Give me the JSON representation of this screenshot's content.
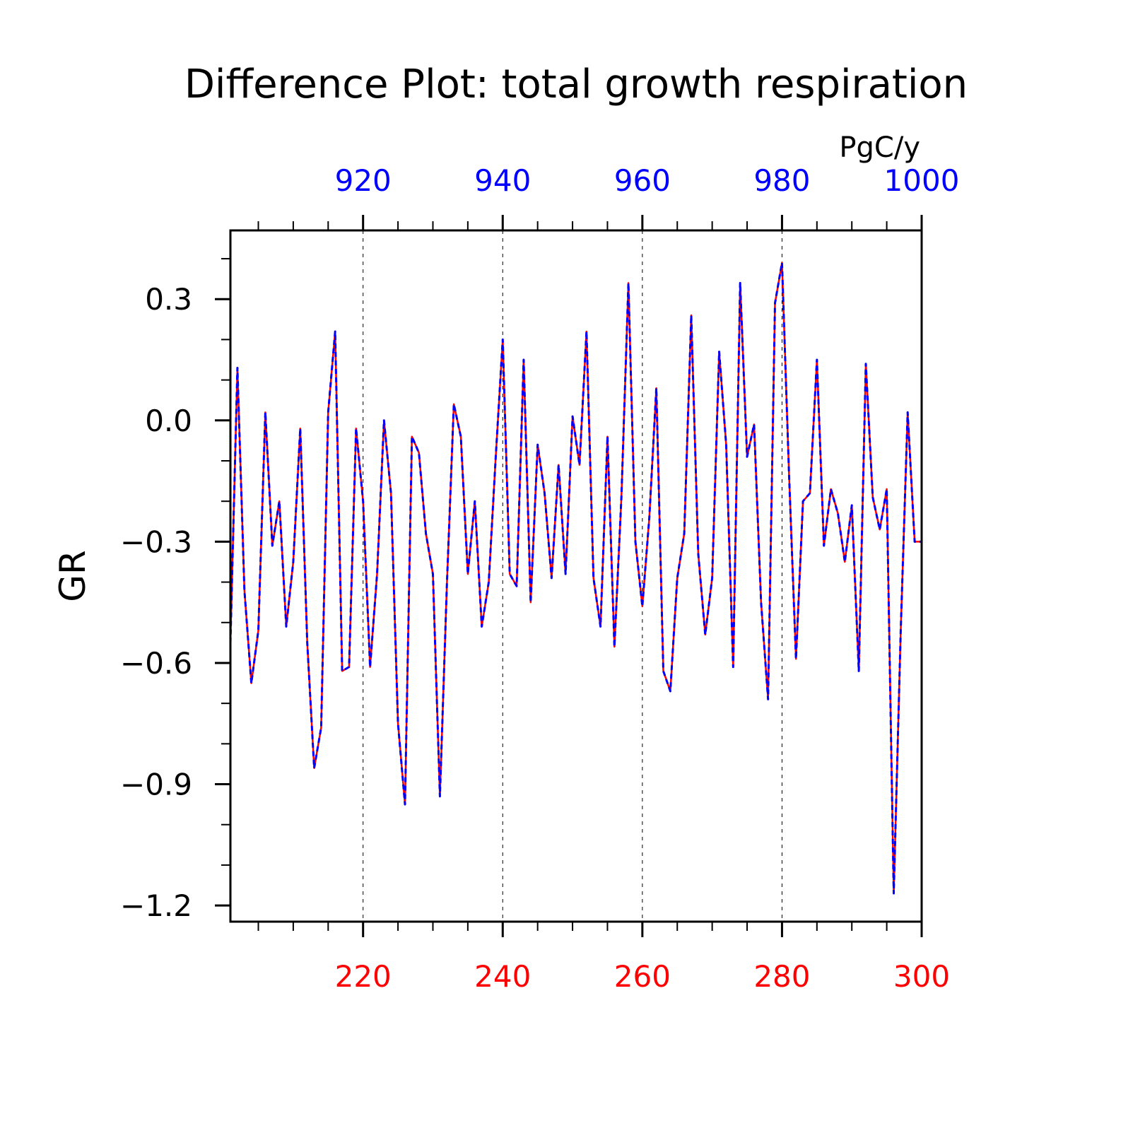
{
  "chart_data": {
    "type": "line",
    "title": "Difference Plot: total growth respiration",
    "units": "PgC/y",
    "ylabel": "GR",
    "xlabel": "",
    "xlim": [
      201,
      300
    ],
    "ylim": [
      -1.24,
      0.47
    ],
    "bottom_axis": {
      "ticks": [
        220,
        240,
        260,
        280,
        300
      ],
      "labels": [
        "220",
        "240",
        "260",
        "280",
        "300"
      ],
      "color": "#ff0000"
    },
    "top_axis": {
      "ticks": [
        220,
        240,
        260,
        280,
        300
      ],
      "labels": [
        "920",
        "940",
        "960",
        "980",
        "1000"
      ],
      "color": "#0000ff"
    },
    "left_axis": {
      "ticks": [
        0.3,
        0.0,
        -0.3,
        -0.6,
        -0.9,
        -1.2
      ],
      "labels": [
        "0.3",
        "0.0",
        "−0.3",
        "−0.6",
        "−0.9",
        "−1.2"
      ]
    },
    "grid": "vertical dashed at major bottom ticks",
    "series": [
      {
        "color": "#ff0000",
        "style": "solid",
        "x": [
          201,
          202,
          203,
          204,
          205,
          206,
          207,
          208,
          209,
          210,
          211,
          212,
          213,
          214,
          215,
          216,
          217,
          218,
          219,
          220,
          221,
          222,
          223,
          224,
          225,
          226,
          227,
          228,
          229,
          230,
          231,
          232,
          233,
          234,
          235,
          236,
          237,
          238,
          239,
          240,
          241,
          242,
          243,
          244,
          245,
          246,
          247,
          248,
          249,
          250,
          251,
          252,
          253,
          254,
          255,
          256,
          257,
          258,
          259,
          260,
          261,
          262,
          263,
          264,
          265,
          266,
          267,
          268,
          269,
          270,
          271,
          272,
          273,
          274,
          275,
          276,
          277,
          278,
          279,
          280,
          281,
          282,
          283,
          284,
          285,
          286,
          287,
          288,
          289,
          290,
          291,
          292,
          293,
          294,
          295,
          296,
          297,
          298,
          299,
          300
        ],
        "values": [
          -0.55,
          0.13,
          -0.42,
          -0.65,
          -0.52,
          0.02,
          -0.31,
          -0.2,
          -0.51,
          -0.35,
          -0.02,
          -0.55,
          -0.86,
          -0.76,
          0.02,
          0.22,
          -0.62,
          -0.61,
          -0.02,
          -0.2,
          -0.61,
          -0.38,
          0.0,
          -0.18,
          -0.75,
          -0.95,
          -0.04,
          -0.08,
          -0.28,
          -0.38,
          -0.93,
          -0.41,
          0.04,
          -0.04,
          -0.38,
          -0.2,
          -0.51,
          -0.4,
          -0.09,
          0.2,
          -0.38,
          -0.41,
          0.15,
          -0.45,
          -0.06,
          -0.18,
          -0.39,
          -0.11,
          -0.38,
          0.01,
          -0.11,
          0.22,
          -0.39,
          -0.51,
          -0.04,
          -0.56,
          -0.19,
          0.34,
          -0.3,
          -0.46,
          -0.24,
          0.08,
          -0.62,
          -0.67,
          -0.39,
          -0.28,
          0.26,
          -0.33,
          -0.53,
          -0.39,
          0.17,
          -0.06,
          -0.61,
          0.34,
          -0.09,
          -0.01,
          -0.45,
          -0.69,
          0.29,
          0.39,
          -0.13,
          -0.59,
          -0.2,
          -0.18,
          0.15,
          -0.31,
          -0.17,
          -0.23,
          -0.35,
          -0.21,
          -0.62,
          0.14,
          -0.19,
          -0.27,
          -0.17,
          -1.17,
          -0.52,
          0.02,
          -0.3,
          -0.3
        ]
      },
      {
        "color": "#0000ff",
        "style": "dashed",
        "x": [
          201,
          202,
          203,
          204,
          205,
          206,
          207,
          208,
          209,
          210,
          211,
          212,
          213,
          214,
          215,
          216,
          217,
          218,
          219,
          220,
          221,
          222,
          223,
          224,
          225,
          226,
          227,
          228,
          229,
          230,
          231,
          232,
          233,
          234,
          235,
          236,
          237,
          238,
          239,
          240,
          241,
          242,
          243,
          244,
          245,
          246,
          247,
          248,
          249,
          250,
          251,
          252,
          253,
          254,
          255,
          256,
          257,
          258,
          259,
          260,
          261,
          262,
          263,
          264,
          265,
          266,
          267,
          268,
          269,
          270,
          271,
          272,
          273,
          274,
          275,
          276,
          277,
          278,
          279,
          280,
          281,
          282,
          283,
          284,
          285,
          286,
          287,
          288,
          289,
          290,
          291,
          292,
          293,
          294,
          295,
          296,
          297,
          298,
          299,
          300
        ],
        "values": [
          -0.55,
          0.13,
          -0.42,
          -0.65,
          -0.52,
          0.02,
          -0.31,
          -0.2,
          -0.51,
          -0.35,
          -0.02,
          -0.55,
          -0.86,
          -0.76,
          0.02,
          0.22,
          -0.62,
          -0.61,
          -0.02,
          -0.2,
          -0.61,
          -0.38,
          0.0,
          -0.18,
          -0.75,
          -0.95,
          -0.04,
          -0.08,
          -0.28,
          -0.38,
          -0.93,
          -0.41,
          0.04,
          -0.04,
          -0.38,
          -0.2,
          -0.51,
          -0.4,
          -0.09,
          0.2,
          -0.38,
          -0.41,
          0.15,
          -0.45,
          -0.06,
          -0.18,
          -0.39,
          -0.11,
          -0.38,
          0.01,
          -0.11,
          0.22,
          -0.39,
          -0.51,
          -0.04,
          -0.56,
          -0.19,
          0.34,
          -0.3,
          -0.46,
          -0.24,
          0.08,
          -0.62,
          -0.67,
          -0.39,
          -0.28,
          0.26,
          -0.33,
          -0.53,
          -0.39,
          0.17,
          -0.06,
          -0.61,
          0.34,
          -0.09,
          -0.01,
          -0.45,
          -0.69,
          0.29,
          0.39,
          -0.13,
          -0.59,
          -0.2,
          -0.18,
          0.15,
          -0.31,
          -0.17,
          -0.23,
          -0.35,
          -0.21,
          -0.62,
          0.14,
          -0.19,
          -0.27,
          -0.17,
          -1.17,
          -0.52,
          0.02,
          -0.3,
          -0.3
        ]
      }
    ]
  }
}
